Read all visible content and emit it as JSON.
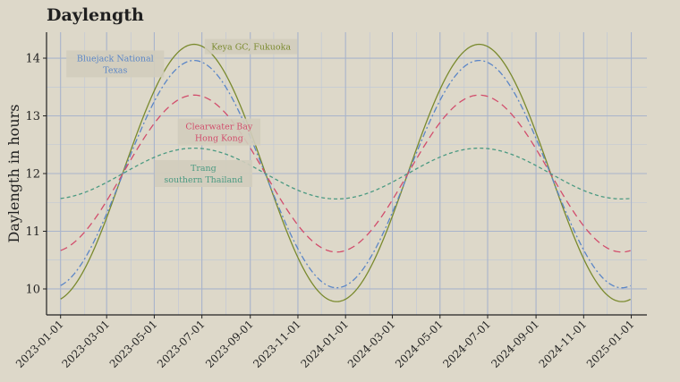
{
  "chart_data": {
    "type": "line",
    "title": "Daylength",
    "xlabel": "",
    "ylabel": "Daylength in hours",
    "xlim": [
      "2022-12-14",
      "2025-01-21"
    ],
    "ylim": [
      9.55,
      14.45
    ],
    "yticks": [
      10,
      11,
      12,
      13,
      14
    ],
    "xticks": [
      "2023-01-01",
      "2023-03-01",
      "2023-05-01",
      "2023-07-01",
      "2023-09-01",
      "2023-11-01",
      "2024-01-01",
      "2024-03-01",
      "2024-05-01",
      "2024-07-01",
      "2024-09-01",
      "2024-11-01",
      "2025-01-01"
    ],
    "x_range": [
      "2023-01-01",
      "2024-12-31"
    ],
    "grid": true,
    "legend": "none",
    "series": [
      {
        "name": "Keya GC, Fukuoka",
        "label_lines": [
          "Keya GC, Fukuoka"
        ],
        "min": 9.78,
        "max": 14.24,
        "color": "#7a8a2e",
        "dash": "",
        "label_at": [
          "2023-09-02",
          14.2
        ]
      },
      {
        "name": "Bluejack National Texas",
        "label_lines": [
          "Bluejack National",
          "Texas"
        ],
        "min": 10.02,
        "max": 13.96,
        "color": "#5b86c7",
        "dash": "7,3,2,3",
        "label_at": [
          "2023-03-12",
          13.9
        ]
      },
      {
        "name": "Clearwater Bay Hong Kong",
        "label_lines": [
          "Clearwater Bay",
          "Hong Kong"
        ],
        "min": 10.64,
        "max": 13.36,
        "color": "#d24d6c",
        "dash": "8,5",
        "label_at": [
          "2023-07-23",
          12.72
        ]
      },
      {
        "name": "Trang southern Thailand",
        "label_lines": [
          "Trang",
          "southern Thailand"
        ],
        "min": 11.56,
        "max": 12.44,
        "color": "#4b9a82",
        "dash": "4,3",
        "label_at": [
          "2023-07-03",
          12.0
        ]
      }
    ]
  }
}
